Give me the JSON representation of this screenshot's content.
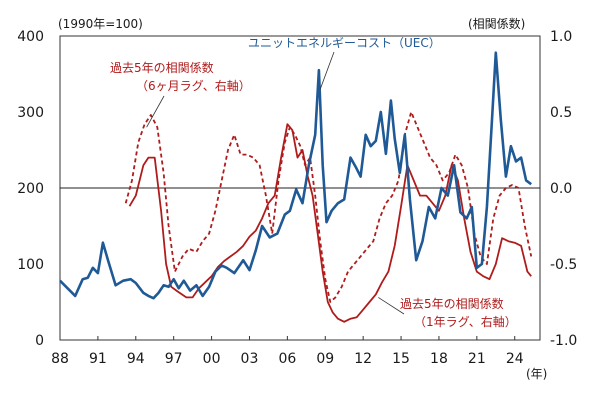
{
  "chart_data": {
    "type": "line",
    "title": "",
    "x_unit_label": "(年)",
    "left_axis": {
      "unit_label": "(1990年=100)",
      "range": [
        0,
        400
      ],
      "ticks": [
        0,
        100,
        200,
        300,
        400
      ]
    },
    "right_axis": {
      "unit_label": "(相関係数)",
      "range": [
        -1.0,
        1.0
      ],
      "ticks": [
        "-1.0",
        "-0.5",
        "0.0",
        "0.5",
        "1.0"
      ]
    },
    "reference_line_right": 0.0,
    "x_range": [
      1988,
      2026
    ],
    "x_ticks": [
      "88",
      "91",
      "94",
      "97",
      "00",
      "03",
      "06",
      "09",
      "12",
      "15",
      "18",
      "21",
      "24"
    ],
    "series": [
      {
        "name": "ユニットエネルギーコスト（UEC）",
        "axis": "left",
        "color": "#1f5a96",
        "style": "solid",
        "x": [
          1988,
          1988.6,
          1989.2,
          1989.8,
          1990.2,
          1990.6,
          1991,
          1991.4,
          1991.8,
          1992.4,
          1993,
          1993.6,
          1994,
          1994.6,
          1995,
          1995.4,
          1995.8,
          1996.2,
          1996.6,
          1997,
          1997.4,
          1997.8,
          1998.3,
          1998.8,
          1999.3,
          1999.8,
          2000.3,
          2000.8,
          2001.2,
          2001.8,
          2002.5,
          2003,
          2003.5,
          2004,
          2004.6,
          2005.2,
          2005.8,
          2006.2,
          2006.7,
          2007.2,
          2007.7,
          2008.2,
          2008.5,
          2008.8,
          2009.1,
          2009.5,
          2010,
          2010.5,
          2011,
          2011.4,
          2011.8,
          2012.2,
          2012.6,
          2013,
          2013.4,
          2013.8,
          2014.2,
          2014.5,
          2014.9,
          2015.3,
          2015.7,
          2016.2,
          2016.7,
          2017.2,
          2017.7,
          2018.2,
          2018.7,
          2019.2,
          2019.7,
          2020.2,
          2020.6,
          2021,
          2021.4,
          2021.8,
          2022.2,
          2022.5,
          2022.9,
          2023.3,
          2023.7,
          2024.1,
          2024.5,
          2024.9,
          2025.3
        ],
        "values": [
          78,
          68,
          58,
          80,
          82,
          95,
          88,
          128,
          105,
          72,
          78,
          80,
          75,
          62,
          58,
          55,
          62,
          72,
          70,
          80,
          68,
          78,
          65,
          72,
          58,
          70,
          90,
          98,
          95,
          88,
          105,
          92,
          118,
          150,
          135,
          140,
          165,
          170,
          198,
          180,
          230,
          270,
          355,
          230,
          155,
          170,
          180,
          185,
          240,
          228,
          215,
          270,
          255,
          262,
          300,
          245,
          315,
          265,
          220,
          270,
          185,
          105,
          130,
          175,
          160,
          200,
          190,
          230,
          168,
          160,
          175,
          95,
          100,
          175,
          290,
          378,
          290,
          215,
          255,
          235,
          240,
          210,
          205
        ]
      },
      {
        "name": "過去5年の相関係数（1年ラグ、右軸）",
        "axis": "right",
        "color": "#b01c1c",
        "style": "solid",
        "x": [
          1993.5,
          1994,
          1994.6,
          1995,
          1995.5,
          1996,
          1996.4,
          1996.8,
          1997.3,
          1998,
          1998.5,
          1999,
          1999.5,
          2000,
          2000.5,
          2001,
          2001.5,
          2002,
          2002.5,
          2003,
          2003.5,
          2004,
          2004.5,
          2005,
          2005.5,
          2006,
          2006.4,
          2006.8,
          2007.2,
          2007.6,
          2008,
          2008.4,
          2008.8,
          2009.2,
          2009.6,
          2010,
          2010.5,
          2011,
          2011.5,
          2012,
          2012.5,
          2013,
          2013.5,
          2014,
          2014.5,
          2015,
          2015.5,
          2016,
          2016.5,
          2017,
          2017.5,
          2018,
          2018.5,
          2019,
          2019.5,
          2020,
          2020.5,
          2021,
          2021.5,
          2022,
          2022.5,
          2023,
          2023.5,
          2024,
          2024.5,
          2025,
          2025.3
        ],
        "values": [
          -0.12,
          -0.05,
          0.15,
          0.2,
          0.2,
          -0.15,
          -0.5,
          -0.65,
          -0.68,
          -0.72,
          -0.72,
          -0.66,
          -0.62,
          -0.58,
          -0.52,
          -0.48,
          -0.45,
          -0.42,
          -0.38,
          -0.32,
          -0.28,
          -0.2,
          -0.1,
          -0.05,
          0.2,
          0.42,
          0.38,
          0.2,
          0.25,
          0.08,
          -0.05,
          -0.3,
          -0.55,
          -0.75,
          -0.82,
          -0.86,
          -0.88,
          -0.86,
          -0.85,
          -0.8,
          -0.75,
          -0.7,
          -0.62,
          -0.55,
          -0.38,
          -0.12,
          0.15,
          0.05,
          -0.05,
          -0.05,
          -0.1,
          -0.15,
          -0.05,
          0.15,
          0.05,
          -0.2,
          -0.42,
          -0.55,
          -0.58,
          -0.6,
          -0.5,
          -0.33,
          -0.35,
          -0.36,
          -0.38,
          -0.55,
          -0.58
        ]
      },
      {
        "name": "過去5年の相関係数（6ヶ月ラグ、右軸）",
        "axis": "right",
        "color": "#b01c1c",
        "style": "dashed",
        "x": [
          1993.2,
          1993.7,
          1994.2,
          1994.7,
          1995.2,
          1995.7,
          1996.2,
          1996.6,
          1997.1,
          1997.7,
          1998.2,
          1998.8,
          1999.3,
          1999.8,
          2000.3,
          2000.8,
          2001.3,
          2001.8,
          2002.3,
          2002.8,
          2003.3,
          2003.8,
          2004.3,
          2004.8,
          2005.3,
          2005.8,
          2006.2,
          2006.6,
          2007,
          2007.4,
          2007.8,
          2008.2,
          2008.6,
          2009,
          2009.4,
          2009.8,
          2010.3,
          2010.8,
          2011.3,
          2011.8,
          2012.3,
          2012.8,
          2013.3,
          2013.8,
          2014.3,
          2014.8,
          2015.3,
          2015.8,
          2016.3,
          2016.8,
          2017.3,
          2017.8,
          2018.3,
          2018.8,
          2019.3,
          2019.8,
          2020.3,
          2020.8,
          2021.3,
          2021.8,
          2022.3,
          2022.8,
          2023.3,
          2023.8,
          2024.3,
          2024.8,
          2025.3
        ],
        "values": [
          -0.1,
          0.05,
          0.3,
          0.42,
          0.48,
          0.4,
          0.1,
          -0.25,
          -0.55,
          -0.45,
          -0.4,
          -0.42,
          -0.35,
          -0.3,
          -0.15,
          0.05,
          0.25,
          0.35,
          0.22,
          0.22,
          0.2,
          0.15,
          -0.05,
          -0.3,
          0.05,
          0.3,
          0.4,
          0.35,
          0.28,
          0.15,
          0.2,
          -0.05,
          -0.35,
          -0.6,
          -0.75,
          -0.72,
          -0.65,
          -0.55,
          -0.5,
          -0.45,
          -0.4,
          -0.35,
          -0.2,
          -0.1,
          -0.05,
          0.05,
          0.35,
          0.5,
          0.4,
          0.3,
          0.2,
          0.15,
          0.05,
          0.1,
          0.22,
          0.15,
          0.0,
          -0.3,
          -0.45,
          -0.5,
          -0.2,
          -0.05,
          0.0,
          0.02,
          0.0,
          -0.25,
          -0.45
        ]
      }
    ],
    "annotations": [
      {
        "text": "ユニットエネルギーコスト（UEC）",
        "series": 0,
        "color": "#1f5a96"
      },
      {
        "text_lines": [
          "過去5年の相関係数",
          "（6ヶ月ラグ、右軸）"
        ],
        "series": 2,
        "color": "#b01c1c"
      },
      {
        "text_lines": [
          "過去5年の相関係数",
          "（1年ラグ、右軸）"
        ],
        "series": 1,
        "color": "#b01c1c"
      }
    ]
  }
}
